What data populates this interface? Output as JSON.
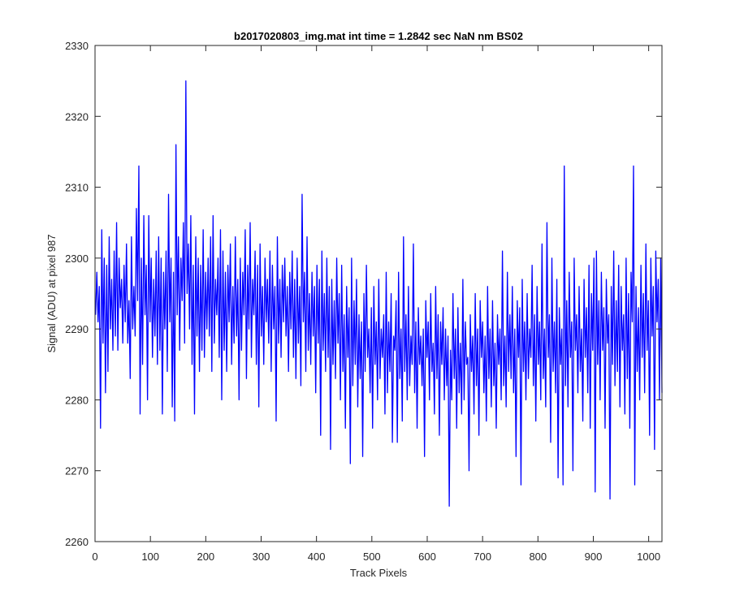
{
  "chart_data": {
    "type": "line",
    "title": "b2017020803_img.mat int time = 1.2842 sec  NaN nm BS02",
    "xlabel": "Track Pixels",
    "ylabel": "Signal (ADU) at pixel 987",
    "xlim": [
      0,
      1024
    ],
    "ylim": [
      2260,
      2330
    ],
    "xticks": [
      0,
      100,
      200,
      300,
      400,
      500,
      600,
      700,
      800,
      900,
      1000
    ],
    "yticks": [
      2260,
      2270,
      2280,
      2290,
      2300,
      2310,
      2320,
      2330
    ],
    "grid": false,
    "series": [
      {
        "color": "#0000ff",
        "x_start": 1,
        "x_step": 1,
        "values": [
          2292,
          2298,
          2291,
          2296,
          2276,
          2304,
          2288,
          2300,
          2281,
          2299,
          2284,
          2303,
          2290,
          2297,
          2287,
          2301,
          2289,
          2305,
          2287,
          2300,
          2293,
          2297,
          2288,
          2299,
          2291,
          2302,
          2288,
          2294,
          2283,
          2303,
          2290,
          2296,
          2289,
          2307,
          2294,
          2313,
          2278,
          2300,
          2285,
          2306,
          2292,
          2299,
          2280,
          2306,
          2291,
          2300,
          2286,
          2297,
          2289,
          2301,
          2285,
          2303,
          2287,
          2300,
          2278,
          2298,
          2290,
          2301,
          2284,
          2309,
          2291,
          2300,
          2279,
          2298,
          2277,
          2316,
          2292,
          2303,
          2287,
          2300,
          2294,
          2305,
          2288,
          2325,
          2295,
          2302,
          2290,
          2306,
          2285,
          2299,
          2278,
          2303,
          2289,
          2300,
          2284,
          2299,
          2287,
          2304,
          2286,
          2298,
          2290,
          2300,
          2289,
          2303,
          2284,
          2306,
          2288,
          2297,
          2292,
          2300,
          2286,
          2304,
          2280,
          2301,
          2287,
          2298,
          2284,
          2299,
          2291,
          2302,
          2285,
          2296,
          2288,
          2303,
          2289,
          2297,
          2280,
          2300,
          2287,
          2298,
          2292,
          2304,
          2283,
          2299,
          2290,
          2305,
          2286,
          2297,
          2292,
          2301,
          2285,
          2299,
          2279,
          2302,
          2289,
          2296,
          2285,
          2300,
          2291,
          2297,
          2288,
          2301,
          2284,
          2299,
          2290,
          2296,
          2277,
          2303,
          2288,
          2297,
          2286,
          2299,
          2291,
          2300,
          2289,
          2296,
          2284,
          2298,
          2290,
          2301,
          2286,
          2297,
          2283,
          2300,
          2288,
          2296,
          2282,
          2309,
          2291,
          2298,
          2284,
          2303,
          2287,
          2295,
          2285,
          2298,
          2289,
          2296,
          2281,
          2299,
          2288,
          2297,
          2275,
          2301,
          2287,
          2295,
          2284,
          2300,
          2286,
          2296,
          2273,
          2297,
          2285,
          2294,
          2283,
          2300,
          2288,
          2295,
          2280,
          2299,
          2284,
          2292,
          2276,
          2296,
          2286,
          2293,
          2271,
          2300,
          2282,
          2294,
          2285,
          2297,
          2279,
          2292,
          2283,
          2291,
          2272,
          2295,
          2284,
          2299,
          2286,
          2290,
          2281,
          2293,
          2276,
          2296,
          2285,
          2291,
          2280,
          2297,
          2283,
          2290,
          2286,
          2292,
          2278,
          2298,
          2281,
          2291,
          2284,
          2295,
          2274,
          2289,
          2287,
          2294,
          2274,
          2298,
          2283,
          2290,
          2277,
          2303,
          2284,
          2292,
          2280,
          2296,
          2282,
          2289,
          2285,
          2302,
          2281,
          2291,
          2276,
          2293,
          2285,
          2289,
          2282,
          2290,
          2272,
          2294,
          2286,
          2291,
          2280,
          2295,
          2284,
          2288,
          2278,
          2296,
          2283,
          2292,
          2275,
          2291,
          2285,
          2293,
          2280,
          2290,
          2282,
          2289,
          2265,
          2287,
          2280,
          2295,
          2283,
          2290,
          2276,
          2293,
          2281,
          2288,
          2278,
          2297,
          2280,
          2291,
          2285,
          2286,
          2270,
          2292,
          2284,
          2289,
          2278,
          2295,
          2282,
          2290,
          2275,
          2294,
          2286,
          2291,
          2281,
          2289,
          2277,
          2296,
          2283,
          2290,
          2279,
          2294,
          2282,
          2288,
          2276,
          2292,
          2285,
          2290,
          2280,
          2301,
          2282,
          2289,
          2279,
          2298,
          2284,
          2292,
          2283,
          2296,
          2281,
          2290,
          2272,
          2294,
          2286,
          2293,
          2268,
          2297,
          2284,
          2291,
          2280,
          2295,
          2283,
          2290,
          2286,
          2299,
          2282,
          2292,
          2277,
          2296,
          2285,
          2291,
          2280,
          2302,
          2283,
          2290,
          2279,
          2305,
          2286,
          2292,
          2274,
          2300,
          2284,
          2291,
          2281,
          2297,
          2269,
          2293,
          2285,
          2290,
          2268,
          2313,
          2282,
          2294,
          2279,
          2298,
          2286,
          2291,
          2270,
          2300,
          2287,
          2292,
          2281,
          2296,
          2284,
          2290,
          2277,
          2297,
          2286,
          2293,
          2281,
          2299,
          2276,
          2295,
          2287,
          2300,
          2267,
          2301,
          2285,
          2294,
          2280,
          2298,
          2287,
          2293,
          2276,
          2297,
          2288,
          2292,
          2266,
          2296,
          2285,
          2301,
          2282,
          2294,
          2284,
          2299,
          2279,
          2296,
          2287,
          2292,
          2278,
          2300,
          2283,
          2295,
          2276,
          2298,
          2291,
          2313,
          2268,
          2296,
          2284,
          2293,
          2280,
          2299,
          2286,
          2295,
          2281,
          2302,
          2287,
          2294,
          2275,
          2300,
          2289,
          2296,
          2273,
          2301,
          2291,
          2297,
          2280,
          2300,
          2281
        ]
      }
    ]
  }
}
